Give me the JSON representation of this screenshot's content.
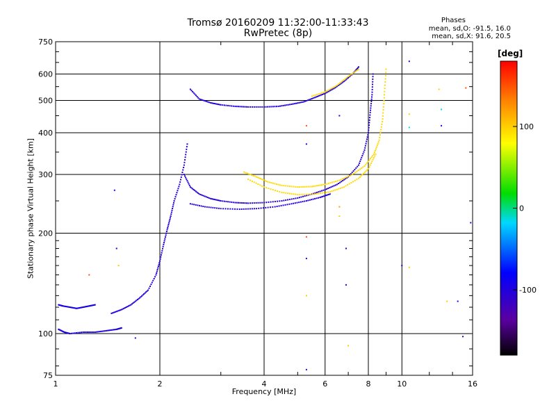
{
  "chart_data": {
    "type": "scatter",
    "title": "Tromsø 20160209 11:32:00-11:33:43",
    "subtitle": "RwPretec (8p)",
    "stats_title": "Phases",
    "stats": [
      "mean, sd,O: -91.5, 16.0",
      "mean, sd,X:  91.6, 20.5"
    ],
    "xlabel": "Frequency [MHz]",
    "ylabel": "Stationary phase Virtual Height [km]",
    "x_scale": "log",
    "y_scale": "log",
    "xlim": [
      1,
      16
    ],
    "ylim": [
      75,
      750
    ],
    "x_ticks": [
      1,
      2,
      4,
      6,
      8,
      10,
      16
    ],
    "x_tick_labels": [
      "1",
      "2",
      "4",
      "6",
      "8",
      "10",
      "16"
    ],
    "y_ticks": [
      75,
      100,
      200,
      300,
      400,
      500,
      600,
      750
    ],
    "y_tick_labels": [
      "75",
      "100",
      "200",
      "300",
      "400",
      "500",
      "600",
      "750"
    ],
    "grid": true,
    "colorbar": {
      "label": "[deg]",
      "range": [
        -180,
        180
      ],
      "ticks": [
        100,
        0,
        -100
      ],
      "tick_labels": [
        "100",
        "0",
        "-100"
      ]
    },
    "traces": [
      {
        "name": "",
        "phase": -95,
        "points": [
          [
            1.02,
            122
          ],
          [
            1.05,
            121
          ],
          [
            1.1,
            120
          ],
          [
            1.15,
            119
          ],
          [
            1.2,
            120
          ],
          [
            1.25,
            121
          ],
          [
            1.3,
            122
          ]
        ]
      },
      {
        "name": "",
        "phase": -95,
        "points": [
          [
            1.02,
            103
          ],
          [
            1.06,
            101
          ],
          [
            1.1,
            100
          ],
          [
            1.2,
            101
          ],
          [
            1.3,
            101
          ],
          [
            1.4,
            102
          ],
          [
            1.5,
            103
          ],
          [
            1.55,
            104
          ]
        ]
      },
      {
        "name": "",
        "phase": -100,
        "points": [
          [
            1.45,
            115
          ],
          [
            1.55,
            118
          ],
          [
            1.65,
            122
          ],
          [
            1.75,
            128
          ],
          [
            1.85,
            135
          ],
          [
            1.95,
            150
          ],
          [
            2.0,
            165
          ],
          [
            2.05,
            185
          ],
          [
            2.1,
            205
          ],
          [
            2.15,
            225
          ],
          [
            2.2,
            250
          ],
          [
            2.28,
            280
          ],
          [
            2.35,
            320
          ],
          [
            2.4,
            370
          ]
        ]
      },
      {
        "name": "",
        "phase": -105,
        "points": [
          [
            2.35,
            300
          ],
          [
            2.45,
            275
          ],
          [
            2.6,
            262
          ],
          [
            2.8,
            254
          ],
          [
            3.0,
            250
          ],
          [
            3.3,
            247
          ],
          [
            3.6,
            246
          ],
          [
            4.0,
            247
          ],
          [
            4.5,
            250
          ],
          [
            5.0,
            255
          ],
          [
            5.5,
            262
          ],
          [
            6.0,
            270
          ],
          [
            6.5,
            280
          ],
          [
            7.0,
            295
          ],
          [
            7.5,
            320
          ],
          [
            7.8,
            355
          ],
          [
            8.0,
            400
          ],
          [
            8.1,
            460
          ],
          [
            8.2,
            520
          ],
          [
            8.25,
            600
          ]
        ]
      },
      {
        "name": "",
        "phase": -100,
        "points": [
          [
            2.45,
            245
          ],
          [
            2.7,
            240
          ],
          [
            3.0,
            237
          ],
          [
            3.4,
            236
          ],
          [
            3.8,
            237
          ],
          [
            4.3,
            240
          ],
          [
            4.8,
            245
          ],
          [
            5.3,
            250
          ],
          [
            5.8,
            256
          ],
          [
            6.2,
            262
          ]
        ]
      },
      {
        "name": "",
        "phase": 95,
        "points": [
          [
            3.5,
            305
          ],
          [
            3.8,
            295
          ],
          [
            4.1,
            285
          ],
          [
            4.5,
            278
          ],
          [
            5.0,
            275
          ],
          [
            5.5,
            276
          ],
          [
            6.0,
            280
          ],
          [
            6.6,
            288
          ],
          [
            7.2,
            300
          ],
          [
            7.8,
            318
          ],
          [
            8.3,
            345
          ],
          [
            8.6,
            380
          ],
          [
            8.8,
            440
          ],
          [
            8.9,
            520
          ],
          [
            9.0,
            620
          ]
        ]
      },
      {
        "name": "",
        "phase": 95,
        "points": [
          [
            3.6,
            290
          ],
          [
            4.0,
            275
          ],
          [
            4.5,
            265
          ],
          [
            5.0,
            261
          ],
          [
            5.6,
            262
          ],
          [
            6.2,
            266
          ],
          [
            6.8,
            275
          ],
          [
            7.5,
            292
          ],
          [
            8.0,
            312
          ],
          [
            8.4,
            345
          ]
        ]
      },
      {
        "name": "",
        "phase": -100,
        "points": [
          [
            2.45,
            540
          ],
          [
            2.6,
            505
          ],
          [
            2.8,
            492
          ],
          [
            3.0,
            485
          ],
          [
            3.3,
            480
          ],
          [
            3.6,
            478
          ],
          [
            4.0,
            478
          ],
          [
            4.4,
            480
          ],
          [
            4.8,
            487
          ],
          [
            5.2,
            495
          ],
          [
            5.6,
            510
          ],
          [
            6.0,
            525
          ],
          [
            6.4,
            545
          ],
          [
            6.8,
            570
          ],
          [
            7.2,
            600
          ],
          [
            7.5,
            630
          ]
        ]
      },
      {
        "name": "",
        "phase": 95,
        "points": [
          [
            5.5,
            515
          ],
          [
            6.0,
            530
          ],
          [
            6.5,
            555
          ],
          [
            7.0,
            590
          ],
          [
            7.5,
            620
          ]
        ]
      }
    ],
    "outliers": [
      [
        1.25,
        150,
        150
      ],
      [
        1.5,
        180,
        -100
      ],
      [
        1.48,
        269,
        -100
      ],
      [
        1.52,
        160,
        100
      ],
      [
        1.7,
        97,
        -100
      ],
      [
        5.3,
        420,
        150
      ],
      [
        5.3,
        370,
        -100
      ],
      [
        5.3,
        195,
        150
      ],
      [
        5.3,
        168,
        -100
      ],
      [
        5.3,
        130,
        100
      ],
      [
        5.3,
        78,
        -100
      ],
      [
        6.6,
        450,
        -100
      ],
      [
        6.6,
        240,
        120
      ],
      [
        6.6,
        225,
        100
      ],
      [
        6.9,
        180,
        -100
      ],
      [
        6.9,
        140,
        -100
      ],
      [
        7.0,
        92,
        100
      ],
      [
        10.0,
        160,
        -100
      ],
      [
        10.5,
        655,
        -100
      ],
      [
        10.5,
        455,
        100
      ],
      [
        10.5,
        415,
        -20
      ],
      [
        10.5,
        158,
        100
      ],
      [
        12.8,
        540,
        100
      ],
      [
        13.0,
        470,
        -20
      ],
      [
        13.0,
        420,
        -100
      ],
      [
        13.5,
        125,
        100
      ],
      [
        14.5,
        125,
        -100
      ],
      [
        15.0,
        98,
        -100
      ],
      [
        15.3,
        545,
        150
      ],
      [
        15.8,
        215,
        -100
      ]
    ]
  }
}
